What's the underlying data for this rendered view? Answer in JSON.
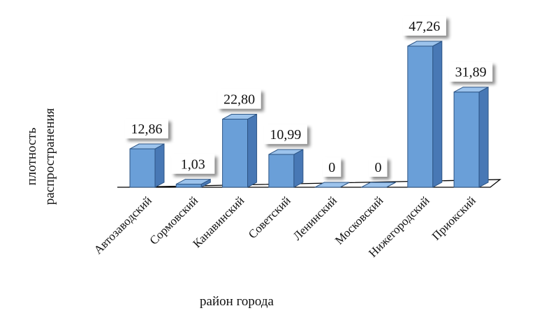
{
  "chart_data": {
    "type": "bar",
    "style": "3d-column",
    "categories": [
      "Автозаводский",
      "Сормовский",
      "Канавинский",
      "Советский",
      "Ленинский",
      "Московский",
      "Нижегородский",
      "Приокский"
    ],
    "values": [
      12.86,
      1.03,
      22.8,
      10.99,
      0,
      0,
      47.26,
      31.89
    ],
    "value_labels": [
      "12,86",
      "1,03",
      "22,80",
      "10,99",
      "0",
      "0",
      "47,26",
      "31,89"
    ],
    "xlabel": "район города",
    "ylabel_lines": [
      "плотность",
      "распространения"
    ],
    "ylim": [
      0,
      47.26
    ],
    "grid": false,
    "legend": "none",
    "colors": {
      "bar_front": "#6a9fd8",
      "bar_side": "#4878b5",
      "bar_top": "#9cc3ec",
      "bar_edge": "#2d5585",
      "floor_edge": "#000000"
    }
  }
}
